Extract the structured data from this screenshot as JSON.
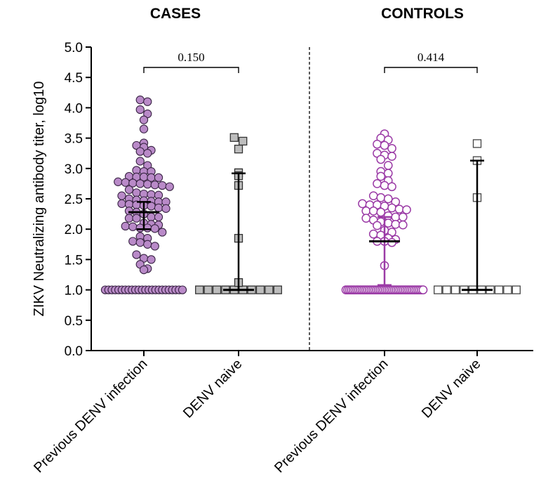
{
  "chart_data": {
    "type": "scatter",
    "ylabel": "ZIKV Neutralizing antibody titer, log10",
    "ylim": [
      0,
      5
    ],
    "yticks": [
      "0.0",
      "0.5",
      "1.0",
      "1.5",
      "2.0",
      "2.5",
      "3.0",
      "3.5",
      "4.0",
      "4.5",
      "5.0"
    ],
    "groups": [
      {
        "title": "CASES",
        "p_value": "0.150",
        "series": [
          {
            "name": "Previous DENV infection",
            "marker": "circle",
            "fill": "#b98ac8",
            "stroke": "#3a2545",
            "median": 2.28,
            "ci": [
              2.0,
              2.45
            ],
            "values": [
              4.13,
              4.1,
              3.97,
              3.9,
              3.8,
              3.65,
              3.42,
              3.38,
              3.35,
              3.3,
              3.28,
              3.25,
              3.12,
              3.05,
              2.97,
              2.95,
              2.95,
              2.87,
              2.86,
              2.86,
              2.85,
              2.85,
              2.78,
              2.77,
              2.76,
              2.75,
              2.74,
              2.73,
              2.72,
              2.7,
              2.65,
              2.6,
              2.58,
              2.57,
              2.56,
              2.55,
              2.5,
              2.48,
              2.47,
              2.46,
              2.45,
              2.45,
              2.42,
              2.41,
              2.4,
              2.39,
              2.38,
              2.35,
              2.34,
              2.3,
              2.28,
              2.25,
              2.2,
              2.2,
              2.18,
              2.18,
              2.1,
              2.08,
              2.07,
              2.05,
              2.04,
              2.02,
              2.02,
              2.01,
              1.95,
              1.88,
              1.85,
              1.8,
              1.78,
              1.75,
              1.72,
              1.58,
              1.52,
              1.5,
              1.42,
              1.35,
              1.33,
              1.0,
              1.0,
              1.0,
              1.0,
              1.0,
              1.0,
              1.0,
              1.0,
              1.0,
              1.0,
              1.0,
              1.0,
              1.0,
              1.0,
              1.0,
              1.0,
              1.0,
              1.0,
              1.0,
              1.0,
              1.0,
              1.0,
              1.0,
              1.0
            ]
          },
          {
            "name": "DENV naive",
            "marker": "square",
            "fill": "#bdbdbd",
            "stroke": "#333333",
            "median": 1.0,
            "ci": [
              1.0,
              2.92
            ],
            "values": [
              3.51,
              3.45,
              3.32,
              2.93,
              2.88,
              2.72,
              1.85,
              1.0,
              1.0,
              1.0,
              1.0,
              1.0,
              1.0,
              1.0,
              1.0,
              1.0,
              1.0,
              1.0
            ]
          }
        ]
      },
      {
        "title": "CONTROLS",
        "p_value": "0.414",
        "series": [
          {
            "name": "Previous DENV infection",
            "marker": "circle-open",
            "fill": "#ffffff",
            "stroke": "#9b3ba6",
            "median": 1.8,
            "ci": [
              1.08,
              2.2
            ],
            "values": [
              3.57,
              3.5,
              3.47,
              3.4,
              3.38,
              3.33,
              3.25,
              3.22,
              3.2,
              3.15,
              3.05,
              2.95,
              2.92,
              2.87,
              2.8,
              2.75,
              2.72,
              2.7,
              2.55,
              2.52,
              2.5,
              2.45,
              2.42,
              2.4,
              2.4,
              2.38,
              2.35,
              2.33,
              2.32,
              2.3,
              2.3,
              2.28,
              2.22,
              2.2,
              2.2,
              2.18,
              2.15,
              2.12,
              2.1,
              2.08,
              2.07,
              2.06,
              1.98,
              1.95,
              1.92,
              1.9,
              1.85,
              1.83,
              1.8,
              1.8,
              1.78,
              1.4,
              1.0,
              1.0,
              1.0,
              1.0,
              1.0,
              1.0,
              1.0,
              1.0,
              1.0,
              1.0,
              1.0,
              1.0,
              1.0,
              1.0,
              1.0,
              1.0,
              1.0,
              1.0,
              1.0,
              1.0,
              1.0,
              1.0,
              1.0,
              1.0,
              1.0,
              1.0,
              1.0,
              1.0,
              1.0,
              1.0,
              1.0,
              1.0,
              1.0,
              1.0,
              1.0,
              1.0,
              1.0,
              1.0,
              1.0,
              1.0,
              1.0,
              1.0,
              1.0,
              1.0
            ]
          },
          {
            "name": "DENV naive",
            "marker": "square-open",
            "fill": "#ffffff",
            "stroke": "#444444",
            "median": 1.0,
            "ci": [
              1.0,
              3.13
            ],
            "values": [
              3.41,
              3.13,
              2.52,
              1.0,
              1.0,
              1.0,
              1.0,
              1.0,
              1.0,
              1.0,
              1.0,
              1.0,
              1.0
            ]
          }
        ]
      }
    ],
    "divider": "dashed vertical line between groups",
    "grid": false,
    "legend": "none"
  }
}
